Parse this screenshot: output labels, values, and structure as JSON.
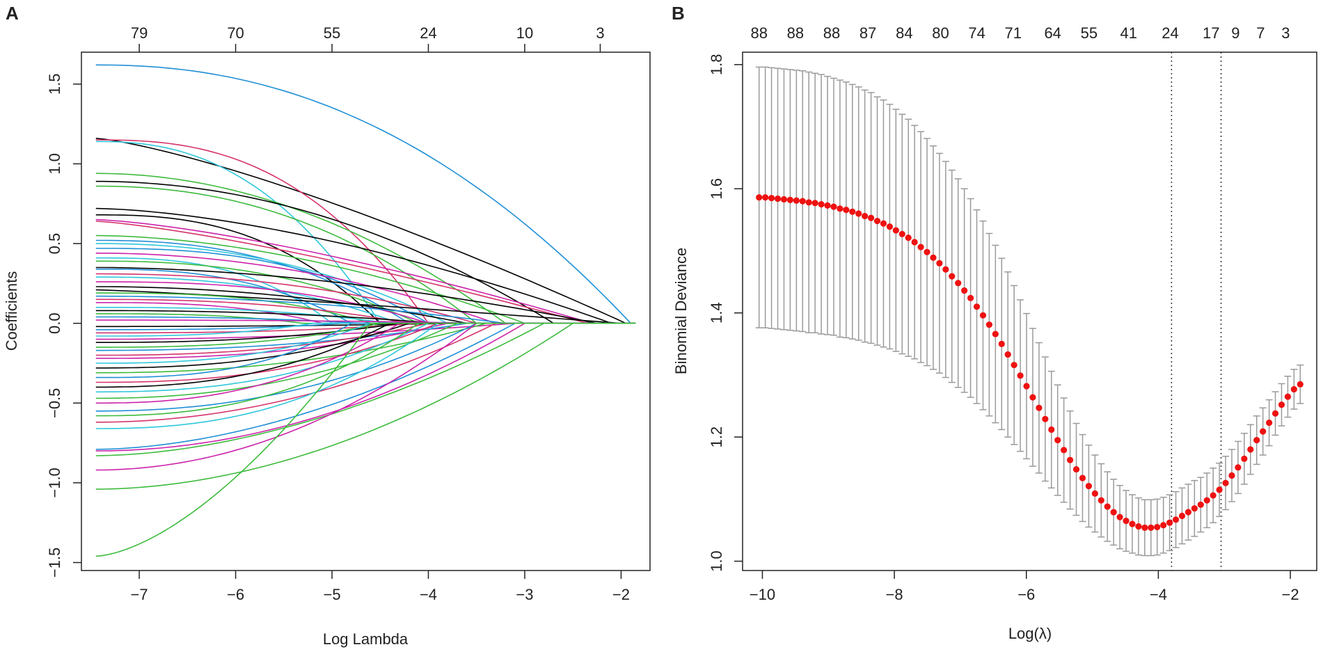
{
  "chart_data": [
    {
      "panel_label": "A",
      "type": "line",
      "title": "",
      "xlabel": "Log Lambda",
      "ylabel": "Coefficients",
      "xlim": [
        -7.6,
        -1.7
      ],
      "ylim": [
        -1.55,
        1.7
      ],
      "x_ticks": [
        -7,
        -6,
        -5,
        -4,
        -3,
        -2
      ],
      "x_tick_labels": [
        "−7",
        "−6",
        "−5",
        "−4",
        "−3",
        "−2"
      ],
      "y_ticks": [
        -1.5,
        -1.0,
        -0.5,
        0.0,
        0.5,
        1.0,
        1.5
      ],
      "y_tick_labels": [
        "−1.5",
        "−1.0",
        "−0.5",
        "0.0",
        "0.5",
        "1.0",
        "1.5"
      ],
      "top_axis_positions": [
        -7,
        -6,
        -5,
        -4,
        -3,
        -2
      ],
      "top_axis_labels": [
        "79",
        "70",
        "55",
        "24",
        "10",
        "3"
      ],
      "series": [
        {
          "color": "#1f8fd6",
          "start": 1.62,
          "end_x": -1.9,
          "shape": 0.6
        },
        {
          "color": "#000000",
          "start": 1.16,
          "end_x": -1.95,
          "shape": 0.15
        },
        {
          "color": "#2fc7dc",
          "start": 1.14,
          "end_x": -4.5,
          "shape": 0.7
        },
        {
          "color": "#d6336b",
          "start": 1.15,
          "end_x": -4.0,
          "shape": 0.8
        },
        {
          "color": "#3dbb3d",
          "start": 0.94,
          "end_x": -3.2,
          "shape": 0.5
        },
        {
          "color": "#000000",
          "start": 0.89,
          "end_x": -2.7,
          "shape": 0.5
        },
        {
          "color": "#3dbb3d",
          "start": 0.86,
          "end_x": -3.5,
          "shape": 0.6
        },
        {
          "color": "#000000",
          "start": 0.72,
          "end_x": -2.1,
          "shape": 0.3
        },
        {
          "color": "#000000",
          "start": 0.68,
          "end_x": -4.5,
          "shape": 0.8
        },
        {
          "color": "#cc22aa",
          "start": 0.65,
          "end_x": -2.3,
          "shape": 0.2
        },
        {
          "color": "#d6336b",
          "start": 0.64,
          "end_x": -2.35,
          "shape": 0.15
        },
        {
          "color": "#3dbb3d",
          "start": 0.55,
          "end_x": -3.0,
          "shape": 0.4
        },
        {
          "color": "#1f8fd6",
          "start": 0.52,
          "end_x": -4.2,
          "shape": 0.7
        },
        {
          "color": "#2fc7dc",
          "start": 0.5,
          "end_x": -3.8,
          "shape": 0.6
        },
        {
          "color": "#1f8fd6",
          "start": 0.47,
          "end_x": -4.0,
          "shape": 0.8
        },
        {
          "color": "#cc22aa",
          "start": 0.44,
          "end_x": -3.3,
          "shape": 0.5
        },
        {
          "color": "#2fc7dc",
          "start": 0.41,
          "end_x": -5.0,
          "shape": 0.9
        },
        {
          "color": "#3dbb3d",
          "start": 0.39,
          "end_x": -4.1,
          "shape": 0.7
        },
        {
          "color": "#000000",
          "start": 0.35,
          "end_x": -2.25,
          "shape": 0.4
        },
        {
          "color": "#1f8fd6",
          "start": 0.34,
          "end_x": -4.8,
          "shape": 0.8
        },
        {
          "color": "#d6336b",
          "start": 0.31,
          "end_x": -3.5,
          "shape": 0.6
        },
        {
          "color": "#2fc7dc",
          "start": 0.29,
          "end_x": -4.3,
          "shape": 0.7
        },
        {
          "color": "#cc22aa",
          "start": 0.26,
          "end_x": -4.0,
          "shape": 0.8
        },
        {
          "color": "#000000",
          "start": 0.23,
          "end_x": -3.6,
          "shape": 0.5
        },
        {
          "color": "#000000",
          "start": 0.21,
          "end_x": -2.0,
          "shape": 0.1
        },
        {
          "color": "#3dbb3d",
          "start": 0.19,
          "end_x": -4.6,
          "shape": 0.9
        },
        {
          "color": "#1f8fd6",
          "start": 0.17,
          "end_x": -3.2,
          "shape": 0.5
        },
        {
          "color": "#d6336b",
          "start": 0.15,
          "end_x": -4.2,
          "shape": 0.7
        },
        {
          "color": "#cc22aa",
          "start": 0.13,
          "end_x": -5.1,
          "shape": 0.9
        },
        {
          "color": "#2fc7dc",
          "start": 0.1,
          "end_x": -4.4,
          "shape": 0.8
        },
        {
          "color": "#000000",
          "start": 0.08,
          "end_x": -3.9,
          "shape": 0.6
        },
        {
          "color": "#3dbb3d",
          "start": 0.06,
          "end_x": -5.3,
          "shape": 0.9
        },
        {
          "color": "#1f8fd6",
          "start": 0.04,
          "end_x": -4.7,
          "shape": 0.8
        },
        {
          "color": "#cc22aa",
          "start": 0.02,
          "end_x": -3.4,
          "shape": 0.7
        },
        {
          "color": "#000000",
          "start": -0.02,
          "end_x": -3.7,
          "shape": 0.6
        },
        {
          "color": "#1f8fd6",
          "start": -0.04,
          "end_x": -4.9,
          "shape": 0.9
        },
        {
          "color": "#d6336b",
          "start": -0.06,
          "end_x": -4.1,
          "shape": 0.8
        },
        {
          "color": "#2fc7dc",
          "start": -0.08,
          "end_x": -5.2,
          "shape": 0.9
        },
        {
          "color": "#cc22aa",
          "start": -0.1,
          "end_x": -3.1,
          "shape": 0.5
        },
        {
          "color": "#000000",
          "start": -0.12,
          "end_x": -4.3,
          "shape": 0.7
        },
        {
          "color": "#3dbb3d",
          "start": -0.15,
          "end_x": -4.5,
          "shape": 0.8
        },
        {
          "color": "#1f8fd6",
          "start": -0.17,
          "end_x": -3.6,
          "shape": 0.6
        },
        {
          "color": "#d6336b",
          "start": -0.2,
          "end_x": -4.0,
          "shape": 0.7
        },
        {
          "color": "#cc22aa",
          "start": -0.22,
          "end_x": -3.8,
          "shape": 0.7
        },
        {
          "color": "#2fc7dc",
          "start": -0.25,
          "end_x": -4.6,
          "shape": 0.8
        },
        {
          "color": "#000000",
          "start": -0.28,
          "end_x": -4.2,
          "shape": 0.7
        },
        {
          "color": "#3dbb3d",
          "start": -0.31,
          "end_x": -3.4,
          "shape": 0.6
        },
        {
          "color": "#1f8fd6",
          "start": -0.34,
          "end_x": -4.8,
          "shape": 0.9
        },
        {
          "color": "#d6336b",
          "start": -0.37,
          "end_x": -3.9,
          "shape": 0.7
        },
        {
          "color": "#000000",
          "start": -0.4,
          "end_x": -4.4,
          "shape": 0.7
        },
        {
          "color": "#2fc7dc",
          "start": -0.43,
          "end_x": -4.0,
          "shape": 0.7
        },
        {
          "color": "#3dbb3d",
          "start": -0.47,
          "end_x": -3.7,
          "shape": 0.6
        },
        {
          "color": "#cc22aa",
          "start": -0.5,
          "end_x": -4.3,
          "shape": 0.7
        },
        {
          "color": "#1f8fd6",
          "start": -0.55,
          "end_x": -3.5,
          "shape": 0.6
        },
        {
          "color": "#3dbb3d",
          "start": -0.58,
          "end_x": -4.1,
          "shape": 0.7
        },
        {
          "color": "#d6336b",
          "start": -0.62,
          "end_x": -3.3,
          "shape": 0.5
        },
        {
          "color": "#2fc7dc",
          "start": -0.66,
          "end_x": -3.9,
          "shape": 0.7
        },
        {
          "color": "#cc22aa",
          "start": -0.8,
          "end_x": -3.0,
          "shape": 0.5
        },
        {
          "color": "#1f8fd6",
          "start": -0.79,
          "end_x": -3.1,
          "shape": 0.4
        },
        {
          "color": "#3dbb3d",
          "start": -0.83,
          "end_x": -2.8,
          "shape": 0.4
        },
        {
          "color": "#cc22aa",
          "start": -0.92,
          "end_x": -3.5,
          "shape": 0.5
        },
        {
          "color": "#3dbb3d",
          "start": -1.04,
          "end_x": -2.5,
          "shape": 0.45
        },
        {
          "color": "#3dbb3d",
          "start": -1.46,
          "end_x": -4.6,
          "shape": 0.3
        }
      ]
    },
    {
      "panel_label": "B",
      "type": "scatter",
      "title": "",
      "xlabel": "Log(λ)",
      "ylabel": "Binomial Deviance",
      "xlim": [
        -10.3,
        -1.6
      ],
      "ylim": [
        0.985,
        1.82
      ],
      "x_ticks": [
        -10,
        -8,
        -6,
        -4,
        -2
      ],
      "x_tick_labels": [
        "−10",
        "−8",
        "−6",
        "−4",
        "−2"
      ],
      "y_ticks": [
        1.0,
        1.2,
        1.4,
        1.6,
        1.8
      ],
      "y_tick_labels": [
        "1.0",
        "1.2",
        "1.4",
        "1.6",
        "1.8"
      ],
      "top_axis_positions": [
        -10.0,
        -9.6,
        -9.2,
        -8.8,
        -8.4,
        -8.0,
        -7.6,
        -7.2,
        -6.8,
        -6.4,
        -6.0,
        -5.6,
        -5.2,
        -4.8,
        -4.4,
        -4.0,
        -3.6
      ],
      "top_axis_labels": [
        "88",
        "88",
        "88",
        "87",
        "84",
        "80",
        "74",
        "71",
        "64",
        "55",
        "41",
        "24",
        "17",
        "9",
        "7",
        "3"
      ],
      "top_axis_label_x": [
        -10.0,
        -9.6,
        -9.2,
        -8.8,
        -8.4,
        -8.0,
        -7.6,
        -7.2,
        -6.8,
        -6.4,
        -6.0,
        -5.6,
        -5.2,
        -4.8,
        -4.4,
        -3.9
      ],
      "top_axis_label_x_real": [
        -10.05,
        -9.5,
        -8.95,
        -8.4,
        -7.85,
        -7.3,
        -6.75,
        -6.2,
        -5.6,
        -5.05,
        -4.45,
        -3.82,
        -3.2,
        -2.83,
        -2.45,
        -2.07
      ],
      "lambda_min": -3.8,
      "lambda_1se": -3.05,
      "n_points": 88,
      "x_first": -10.05,
      "x_last": -1.85,
      "cv_mean": [
        1.586,
        1.586,
        1.585,
        1.584,
        1.583,
        1.582,
        1.581,
        1.58,
        1.578,
        1.577,
        1.575,
        1.573,
        1.571,
        1.568,
        1.566,
        1.563,
        1.56,
        1.556,
        1.553,
        1.548,
        1.544,
        1.539,
        1.533,
        1.527,
        1.521,
        1.514,
        1.506,
        1.498,
        1.489,
        1.48,
        1.47,
        1.459,
        1.448,
        1.436,
        1.424,
        1.41,
        1.396,
        1.381,
        1.366,
        1.35,
        1.333,
        1.316,
        1.299,
        1.282,
        1.264,
        1.247,
        1.229,
        1.212,
        1.195,
        1.179,
        1.163,
        1.148,
        1.134,
        1.121,
        1.109,
        1.098,
        1.088,
        1.079,
        1.071,
        1.065,
        1.06,
        1.056,
        1.054,
        1.054,
        1.055,
        1.058,
        1.062,
        1.067,
        1.073,
        1.079,
        1.085,
        1.091,
        1.098,
        1.106,
        1.115,
        1.126,
        1.138,
        1.151,
        1.165,
        1.18,
        1.195,
        1.209,
        1.223,
        1.238,
        1.252,
        1.265,
        1.277,
        1.285
      ],
      "cv_halfwidth": [
        0.21,
        0.21,
        0.21,
        0.21,
        0.21,
        0.21,
        0.21,
        0.21,
        0.21,
        0.209,
        0.209,
        0.208,
        0.207,
        0.207,
        0.206,
        0.205,
        0.204,
        0.203,
        0.202,
        0.2,
        0.199,
        0.197,
        0.195,
        0.193,
        0.191,
        0.188,
        0.186,
        0.183,
        0.18,
        0.177,
        0.174,
        0.171,
        0.168,
        0.164,
        0.16,
        0.156,
        0.152,
        0.147,
        0.143,
        0.138,
        0.133,
        0.128,
        0.122,
        0.117,
        0.111,
        0.105,
        0.1,
        0.094,
        0.089,
        0.084,
        0.079,
        0.074,
        0.07,
        0.066,
        0.062,
        0.059,
        0.056,
        0.053,
        0.051,
        0.049,
        0.047,
        0.046,
        0.045,
        0.045,
        0.045,
        0.045,
        0.045,
        0.045,
        0.045,
        0.045,
        0.045,
        0.044,
        0.044,
        0.044,
        0.043,
        0.043,
        0.042,
        0.042,
        0.041,
        0.04,
        0.039,
        0.038,
        0.037,
        0.035,
        0.034,
        0.033,
        0.032,
        0.031
      ]
    }
  ]
}
